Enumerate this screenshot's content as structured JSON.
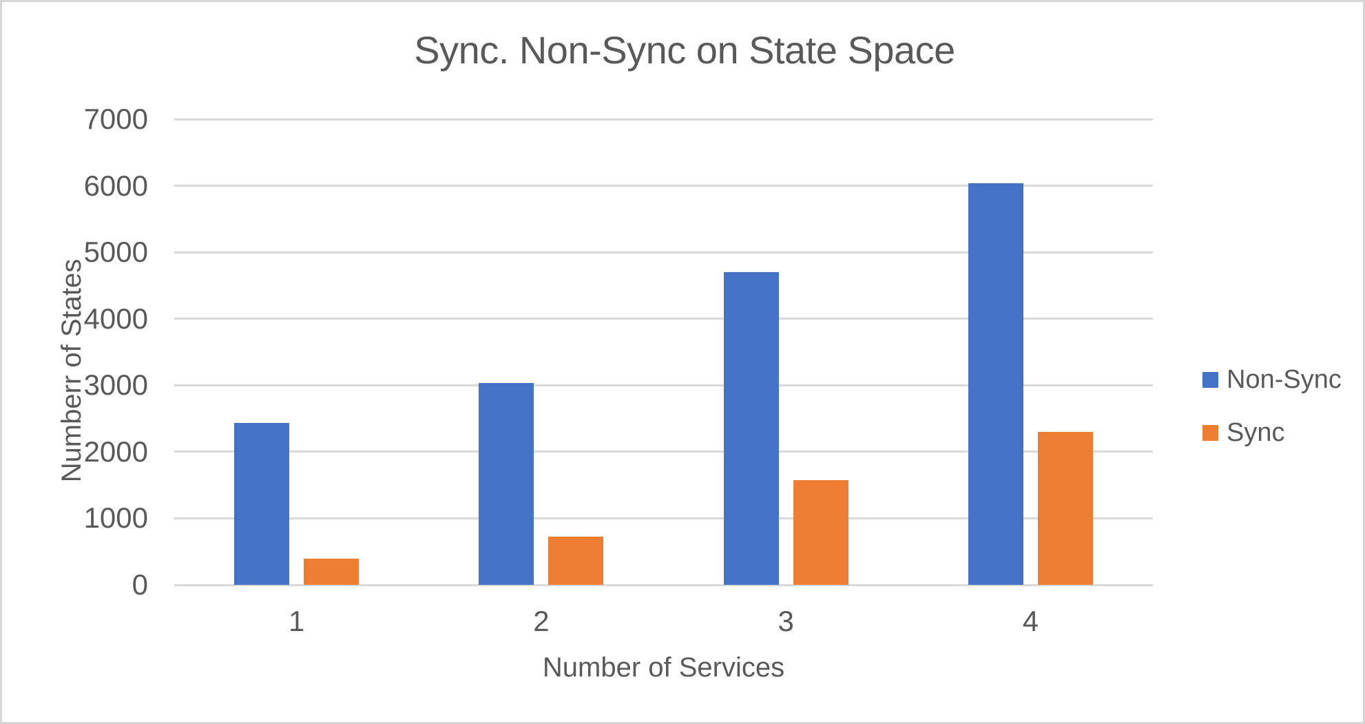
{
  "chart_data": {
    "type": "bar",
    "title": "Sync. Non-Sync on State Space",
    "xlabel": "Number of Services",
    "ylabel": "Numberr of States",
    "categories": [
      "1",
      "2",
      "3",
      "4"
    ],
    "series": [
      {
        "name": "Non-Sync",
        "color": "#4472C4",
        "values": [
          2430,
          3030,
          4700,
          6040
        ]
      },
      {
        "name": "Sync",
        "color": "#ED7D31",
        "values": [
          390,
          720,
          1570,
          2300
        ]
      }
    ],
    "ylim": [
      0,
      7000
    ],
    "yticks": [
      0,
      1000,
      2000,
      3000,
      4000,
      5000,
      6000,
      7000
    ],
    "grid": true,
    "legend_position": "right",
    "colors": {
      "text": "#595959",
      "gridline": "#d9d9d9",
      "frame_border": "#d6d6d6",
      "background": "#ffffff"
    }
  }
}
